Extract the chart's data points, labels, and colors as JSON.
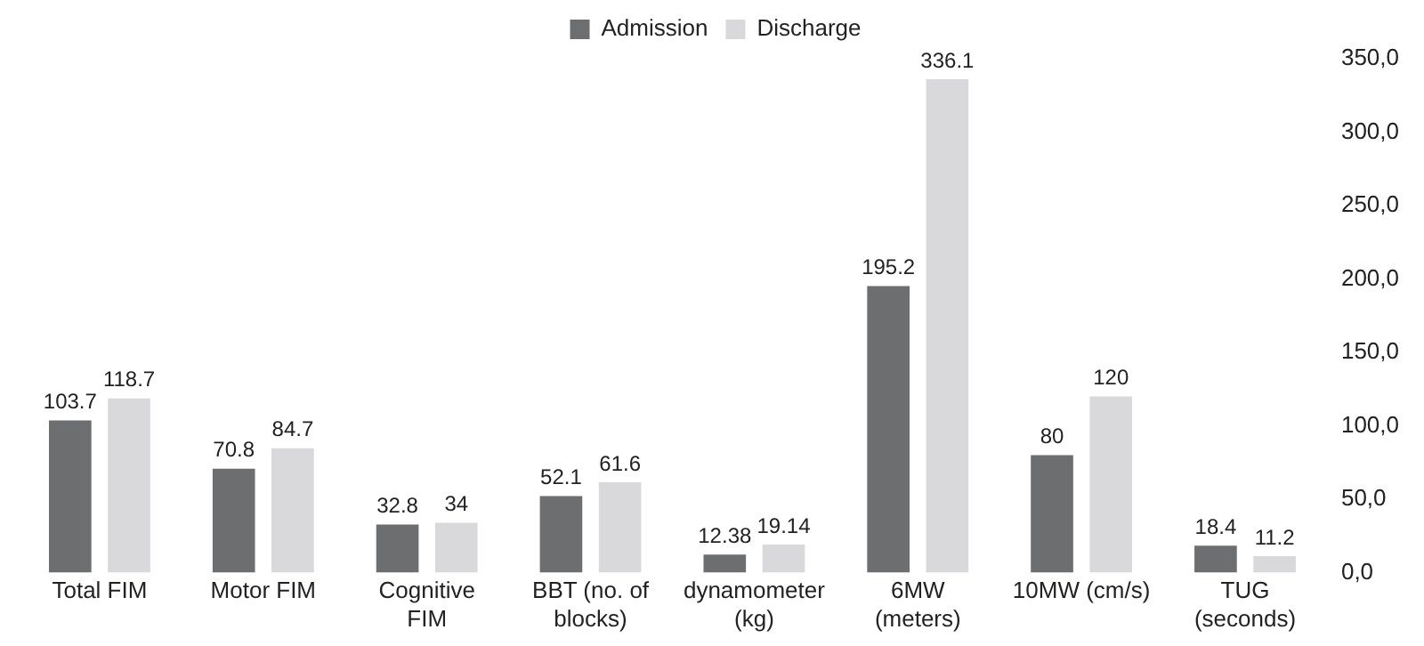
{
  "chart_data": {
    "type": "bar",
    "categories": [
      "Total FIM",
      "Motor FIM",
      "Cognitive FIM",
      "BBT (no. of blocks)",
      "dynamometer (kg)",
      "6MW (meters)",
      "10MW (cm/s)",
      "TUG (seconds)"
    ],
    "series": [
      {
        "name": "Admission",
        "color": "#6d6e70",
        "values": [
          103.7,
          70.8,
          32.8,
          52.1,
          12.38,
          195.2,
          80,
          18.4
        ]
      },
      {
        "name": "Discharge",
        "color": "#d9d9db",
        "values": [
          118.7,
          84.7,
          34,
          61.6,
          19.14,
          336.1,
          120,
          11.2
        ]
      }
    ],
    "ylim": [
      0,
      350
    ],
    "yticks": [
      {
        "value": 0,
        "label": "0,0"
      },
      {
        "value": 50,
        "label": "50,0"
      },
      {
        "value": 100,
        "label": "100,0"
      },
      {
        "value": 150,
        "label": "150,0"
      },
      {
        "value": 200,
        "label": "200,0"
      },
      {
        "value": 250,
        "label": "250,0"
      },
      {
        "value": 300,
        "label": "300,0"
      },
      {
        "value": 350,
        "label": "350,0"
      }
    ],
    "grid": false,
    "legend": "top",
    "data_labels": true
  }
}
